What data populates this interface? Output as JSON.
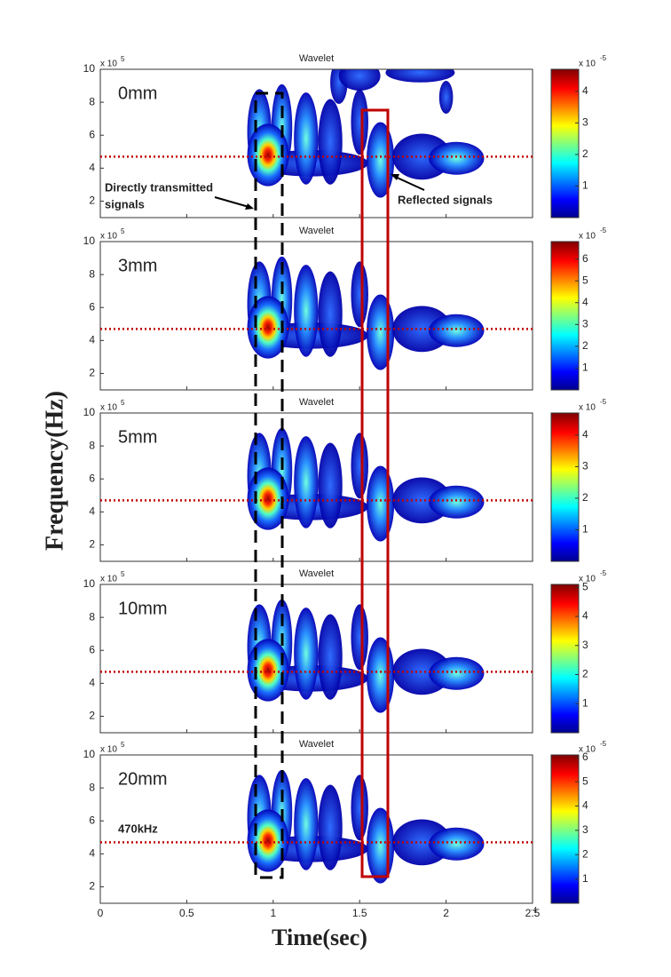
{
  "figure": {
    "ylabel": "Frequency(Hz)",
    "xlabel": "Time(sec)",
    "x_exponent": "-4",
    "annotations": {
      "direct": [
        "Directly transmitted",
        "signals"
      ],
      "reflected": "Reflected signals",
      "frequency": "470kHz"
    }
  },
  "chart_data": [
    {
      "type": "scalogram",
      "title": "Wavelet",
      "label": "0mm",
      "ylim": [
        1,
        10
      ],
      "yticks": [
        2,
        4,
        6,
        8,
        10
      ],
      "y_multiplier": "x 10",
      "y_exponent": "5",
      "xlim": [
        0,
        2.5
      ],
      "xticks": [
        0,
        0.5,
        1,
        1.5,
        2,
        2.5
      ],
      "reference_line": 4.7,
      "reference_color": "#c00000",
      "colorbar": {
        "lim": [
          0,
          4.7
        ],
        "ticks": [
          1,
          2,
          3,
          4
        ],
        "multiplier": "x 10",
        "exponent": "-5"
      }
    },
    {
      "type": "scalogram",
      "title": "Wavelet",
      "label": "3mm",
      "ylim": [
        1,
        10
      ],
      "yticks": [
        2,
        4,
        6,
        8,
        10
      ],
      "y_multiplier": "x 10",
      "y_exponent": "5",
      "xlim": [
        0,
        2.5
      ],
      "xticks": [
        0,
        0.5,
        1,
        1.5,
        2,
        2.5
      ],
      "reference_line": 4.7,
      "reference_color": "#c00000",
      "colorbar": {
        "lim": [
          0,
          6.8
        ],
        "ticks": [
          1,
          2,
          3,
          4,
          5,
          6
        ],
        "multiplier": "x 10",
        "exponent": "-5"
      }
    },
    {
      "type": "scalogram",
      "title": "Wavelet",
      "label": "5mm",
      "ylim": [
        1,
        10
      ],
      "yticks": [
        2,
        4,
        6,
        8,
        10
      ],
      "y_multiplier": "x 10",
      "y_exponent": "5",
      "xlim": [
        0,
        2.5
      ],
      "xticks": [
        0,
        0.5,
        1,
        1.5,
        2,
        2.5
      ],
      "reference_line": 4.7,
      "reference_color": "#c00000",
      "colorbar": {
        "lim": [
          0,
          4.7
        ],
        "ticks": [
          1,
          2,
          3,
          4
        ],
        "multiplier": "x 10",
        "exponent": "-5"
      }
    },
    {
      "type": "scalogram",
      "title": "Wavelet",
      "label": "10mm",
      "ylim": [
        1,
        10
      ],
      "yticks": [
        2,
        4,
        6,
        8,
        10
      ],
      "y_multiplier": "x 10",
      "y_exponent": "5",
      "xlim": [
        0,
        2.5
      ],
      "xticks": [
        0,
        0.5,
        1,
        1.5,
        2,
        2.5
      ],
      "reference_line": 4.7,
      "reference_color": "#c00000",
      "colorbar": {
        "lim": [
          0,
          5.1
        ],
        "ticks": [
          1,
          2,
          3,
          4,
          5
        ],
        "multiplier": "x 10",
        "exponent": "-5"
      }
    },
    {
      "type": "scalogram",
      "title": "Wavelet",
      "label": "20mm",
      "ylim": [
        1,
        10
      ],
      "yticks": [
        2,
        4,
        6,
        8,
        10
      ],
      "y_multiplier": "x 10",
      "y_exponent": "5",
      "xlim": [
        0,
        2.5
      ],
      "xticks": [
        0,
        0.5,
        1,
        1.5,
        2,
        2.5
      ],
      "reference_line": 4.7,
      "reference_color": "#c00000",
      "colorbar": {
        "lim": [
          0,
          6.1
        ],
        "ticks": [
          1,
          2,
          3,
          4,
          5,
          6
        ],
        "multiplier": "x 10",
        "exponent": "-5"
      }
    }
  ]
}
